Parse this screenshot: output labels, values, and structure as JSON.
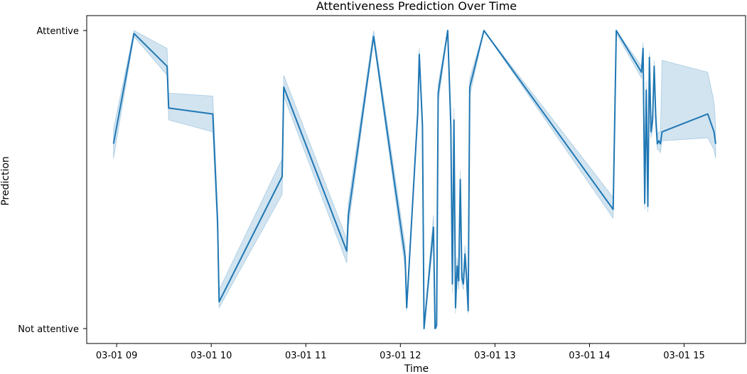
{
  "chart_data": {
    "type": "line",
    "title": "Attentiveness Prediction Over Time",
    "xlabel": "Time",
    "ylabel": "Prediction",
    "x_tick_labels": [
      "03-01 09",
      "03-01 10",
      "03-01 11",
      "03-01 12",
      "03-01 13",
      "03-01 14",
      "03-01 15"
    ],
    "x_ticks": [
      "2024-03-01 09:00",
      "2024-03-01 10:00",
      "2024-03-01 11:00",
      "2024-03-01 12:00",
      "2024-03-01 13:00",
      "2024-03-01 14:00",
      "2024-03-01 15:00"
    ],
    "xlim": [
      "2024-03-01 08:41",
      "2024-03-01 15:39"
    ],
    "y_tick_labels": [
      "Attentive",
      "Not attentive"
    ],
    "y_ticks": [
      1,
      0
    ],
    "ylim": [
      -0.05,
      1.05
    ],
    "grid": false,
    "colors": {
      "line": "#1f77b4",
      "band": "#1f77b4"
    },
    "series": [
      {
        "x": [
          "2024-03-01 08:58",
          "2024-03-01 09:11",
          "2024-03-01 09:32",
          "2024-03-01 09:33",
          "2024-03-01 10:01",
          "2024-03-01 10:04",
          "2024-03-01 10:05",
          "2024-03-01 10:45",
          "2024-03-01 10:46",
          "2024-03-01 11:26",
          "2024-03-01 11:27",
          "2024-03-01 11:43",
          "2024-03-01 12:03",
          "2024-03-01 12:04",
          "2024-03-01 12:11",
          "2024-03-01 12:12",
          "2024-03-01 12:14",
          "2024-03-01 12:15",
          "2024-03-01 12:21",
          "2024-03-01 12:22",
          "2024-03-01 12:23",
          "2024-03-01 12:24",
          "2024-03-01 12:30",
          "2024-03-01 12:32",
          "2024-03-01 12:33",
          "2024-03-01 12:34",
          "2024-03-01 12:35",
          "2024-03-01 12:36",
          "2024-03-01 12:37",
          "2024-03-01 12:38",
          "2024-03-01 12:39",
          "2024-03-01 12:40",
          "2024-03-01 12:41",
          "2024-03-01 12:42",
          "2024-03-01 12:43",
          "2024-03-01 12:44",
          "2024-03-01 12:53",
          "2024-03-01 14:15",
          "2024-03-01 14:17",
          "2024-03-01 14:33",
          "2024-03-01 14:34",
          "2024-03-01 14:35",
          "2024-03-01 14:36",
          "2024-03-01 14:37",
          "2024-03-01 14:38",
          "2024-03-01 14:39",
          "2024-03-01 14:40",
          "2024-03-01 14:41",
          "2024-03-01 14:42",
          "2024-03-01 14:43",
          "2024-03-01 14:44",
          "2024-03-01 14:45",
          "2024-03-01 14:46",
          "2024-03-01 15:15",
          "2024-03-01 15:19",
          "2024-03-01 15:20"
        ],
        "y": [
          0.62,
          0.99,
          0.88,
          0.74,
          0.72,
          0.36,
          0.09,
          0.51,
          0.81,
          0.26,
          0.38,
          0.98,
          0.24,
          0.07,
          0.72,
          0.92,
          0.68,
          0.0,
          0.34,
          0.0,
          0.01,
          0.79,
          1.0,
          0.68,
          0.15,
          0.7,
          0.07,
          0.21,
          0.16,
          0.5,
          0.17,
          0.15,
          0.25,
          0.17,
          0.06,
          0.81,
          1.0,
          0.4,
          1.0,
          0.86,
          0.94,
          0.42,
          0.8,
          0.41,
          0.91,
          0.66,
          0.7,
          0.88,
          0.71,
          0.62,
          0.63,
          0.62,
          0.66,
          0.72,
          0.66,
          0.62
        ],
        "lower": [
          0.57,
          0.98,
          0.85,
          0.7,
          0.66,
          0.32,
          0.07,
          0.45,
          0.78,
          0.22,
          0.34,
          0.97,
          0.2,
          0.06,
          0.7,
          0.9,
          0.65,
          0.0,
          0.3,
          0.0,
          0.0,
          0.76,
          0.99,
          0.64,
          0.12,
          0.67,
          0.05,
          0.18,
          0.13,
          0.47,
          0.15,
          0.13,
          0.22,
          0.15,
          0.05,
          0.78,
          1.0,
          0.37,
          0.99,
          0.84,
          0.92,
          0.4,
          0.77,
          0.39,
          0.89,
          0.64,
          0.67,
          0.85,
          0.68,
          0.6,
          0.6,
          0.59,
          0.63,
          0.64,
          0.6,
          0.57
        ],
        "upper": [
          0.67,
          1.0,
          0.94,
          0.79,
          0.78,
          0.4,
          0.13,
          0.57,
          0.85,
          0.3,
          0.42,
          1.0,
          0.28,
          0.09,
          0.75,
          0.94,
          0.71,
          0.01,
          0.38,
          0.01,
          0.02,
          0.82,
          1.0,
          0.72,
          0.18,
          0.74,
          0.09,
          0.24,
          0.19,
          0.53,
          0.19,
          0.18,
          0.28,
          0.2,
          0.08,
          0.84,
          1.0,
          0.44,
          1.0,
          0.88,
          0.96,
          0.45,
          0.83,
          0.44,
          0.93,
          0.69,
          0.73,
          0.9,
          0.74,
          0.65,
          0.66,
          0.66,
          0.9,
          0.86,
          0.76,
          0.68
        ]
      }
    ]
  }
}
